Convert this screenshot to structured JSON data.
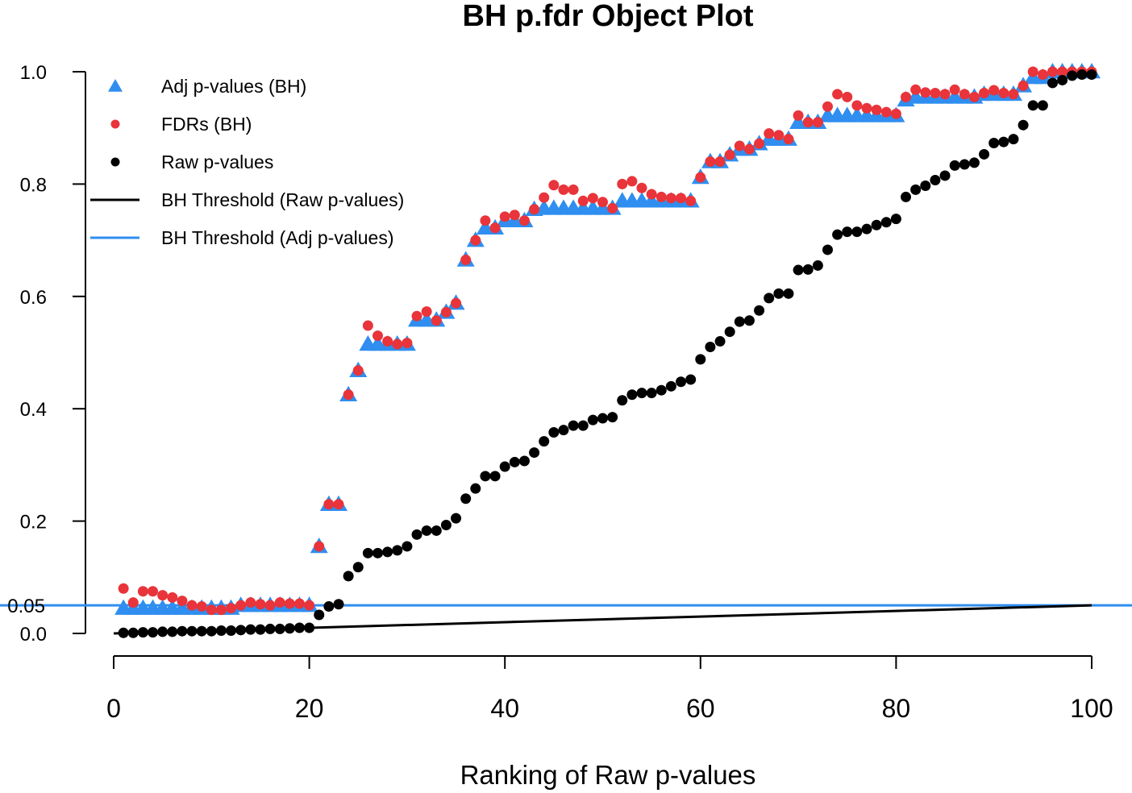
{
  "chart_data": {
    "type": "scatter",
    "title": "BH p.fdr Object Plot",
    "xlabel": "Ranking of Raw p-values",
    "ylabel": "",
    "xlim": [
      0,
      100
    ],
    "ylim": [
      0,
      1
    ],
    "x_ticks": [
      "0",
      "20",
      "40",
      "60",
      "80",
      "100"
    ],
    "y_ticks": [
      "0.0",
      "0.2",
      "0.4",
      "0.6",
      "0.8",
      "1.0"
    ],
    "hline": {
      "value": 0.05,
      "label": "0.05",
      "color": "#2f8ef0"
    },
    "legend_position": "top-left",
    "grid": false,
    "colors": {
      "adj": "#2f8ef0",
      "fdr": "#e8343a",
      "raw": "#000000",
      "threshold_raw": "#000000",
      "threshold_adj": "#2f8ef0"
    },
    "legend": [
      {
        "label": "Adj p-values (BH)",
        "symbol": "triangle",
        "color": "#2f8ef0"
      },
      {
        "label": "FDRs (BH)",
        "symbol": "circle",
        "color": "#e8343a"
      },
      {
        "label": "Raw p-values",
        "symbol": "circle",
        "color": "#000000"
      },
      {
        "label": "BH Threshold (Raw p-values)",
        "symbol": "line",
        "color": "#000000"
      },
      {
        "label": "BH Threshold (Adj p-values)",
        "symbol": "line",
        "color": "#2f8ef0"
      }
    ],
    "series": [
      {
        "key": "raw",
        "values": [
          0.001,
          0.001,
          0.002,
          0.002,
          0.003,
          0.003,
          0.004,
          0.004,
          0.004,
          0.004,
          0.005,
          0.005,
          0.006,
          0.007,
          0.007,
          0.008,
          0.008,
          0.009,
          0.01,
          0.01,
          0.033,
          0.048,
          0.052,
          0.102,
          0.118,
          0.143,
          0.143,
          0.145,
          0.148,
          0.155,
          0.176,
          0.183,
          0.183,
          0.193,
          0.205,
          0.24,
          0.258,
          0.28,
          0.28,
          0.297,
          0.305,
          0.307,
          0.322,
          0.342,
          0.358,
          0.362,
          0.37,
          0.37,
          0.38,
          0.383,
          0.385,
          0.415,
          0.425,
          0.428,
          0.428,
          0.433,
          0.44,
          0.448,
          0.452,
          0.488,
          0.51,
          0.52,
          0.537,
          0.555,
          0.557,
          0.575,
          0.597,
          0.605,
          0.605,
          0.647,
          0.648,
          0.655,
          0.683,
          0.71,
          0.715,
          0.715,
          0.72,
          0.727,
          0.732,
          0.738,
          0.777,
          0.79,
          0.797,
          0.807,
          0.815,
          0.833,
          0.835,
          0.838,
          0.853,
          0.873,
          0.875,
          0.88,
          0.905,
          0.94,
          0.94,
          0.98,
          0.985,
          0.993,
          0.995,
          0.995
        ]
      },
      {
        "key": "adj",
        "values": [
          0.045,
          0.045,
          0.045,
          0.045,
          0.045,
          0.045,
          0.045,
          0.045,
          0.045,
          0.045,
          0.045,
          0.045,
          0.05,
          0.05,
          0.05,
          0.05,
          0.05,
          0.05,
          0.05,
          0.05,
          0.155,
          0.23,
          0.23,
          0.425,
          0.468,
          0.515,
          0.515,
          0.515,
          0.515,
          0.515,
          0.558,
          0.558,
          0.558,
          0.572,
          0.588,
          0.665,
          0.7,
          0.722,
          0.722,
          0.735,
          0.735,
          0.735,
          0.755,
          0.757,
          0.757,
          0.757,
          0.757,
          0.757,
          0.757,
          0.757,
          0.757,
          0.77,
          0.77,
          0.77,
          0.77,
          0.77,
          0.77,
          0.77,
          0.77,
          0.812,
          0.84,
          0.84,
          0.852,
          0.862,
          0.862,
          0.872,
          0.88,
          0.88,
          0.88,
          0.91,
          0.91,
          0.91,
          0.922,
          0.922,
          0.922,
          0.922,
          0.922,
          0.922,
          0.922,
          0.922,
          0.95,
          0.955,
          0.955,
          0.955,
          0.955,
          0.955,
          0.955,
          0.955,
          0.96,
          0.96,
          0.96,
          0.96,
          0.975,
          0.99,
          0.99,
          1.0,
          1.0,
          1.0,
          1.0,
          1.0
        ]
      },
      {
        "key": "fdr",
        "values": [
          0.08,
          0.055,
          0.075,
          0.075,
          0.068,
          0.064,
          0.058,
          0.05,
          0.048,
          0.042,
          0.042,
          0.045,
          0.05,
          0.055,
          0.052,
          0.05,
          0.055,
          0.053,
          0.053,
          0.05,
          0.155,
          0.23,
          0.23,
          0.425,
          0.468,
          0.548,
          0.53,
          0.52,
          0.515,
          0.517,
          0.565,
          0.573,
          0.557,
          0.572,
          0.588,
          0.665,
          0.7,
          0.735,
          0.722,
          0.742,
          0.745,
          0.735,
          0.755,
          0.776,
          0.798,
          0.79,
          0.79,
          0.77,
          0.775,
          0.768,
          0.757,
          0.8,
          0.805,
          0.793,
          0.782,
          0.777,
          0.775,
          0.775,
          0.77,
          0.812,
          0.84,
          0.84,
          0.852,
          0.868,
          0.862,
          0.872,
          0.89,
          0.887,
          0.88,
          0.922,
          0.91,
          0.91,
          0.938,
          0.96,
          0.955,
          0.94,
          0.935,
          0.932,
          0.928,
          0.925,
          0.955,
          0.968,
          0.963,
          0.962,
          0.96,
          0.968,
          0.96,
          0.955,
          0.962,
          0.967,
          0.962,
          0.96,
          0.975,
          1.0,
          0.995,
          1.0,
          1.0,
          1.0,
          1.0,
          1.0
        ]
      }
    ]
  }
}
